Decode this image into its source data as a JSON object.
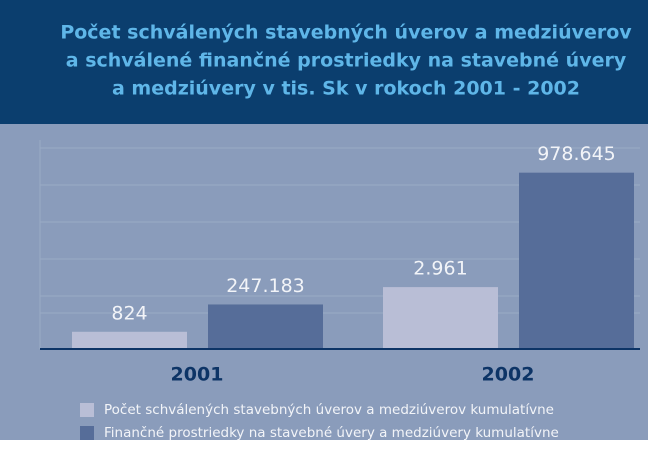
{
  "chart_data": {
    "type": "bar",
    "title": [
      "Počet schválených stavebných úverov a medziúverov",
      "a schválené finančné prostriedky na stavebné úvery",
      "a medziúvery v tis. Sk v rokoch 2001 - 2002"
    ],
    "categories": [
      "2001",
      "2002"
    ],
    "series": [
      {
        "name": "Počet schválených stavebných úverov a medziúverov kumulatívne",
        "color": "#b9bed6",
        "values": [
          824,
          2961
        ],
        "value_labels": [
          "824",
          "2.961"
        ],
        "axis": "y2"
      },
      {
        "name": "Finančné prostriedky na stavebné úvery a medziúvery kumulatívne",
        "color": "#566d99",
        "values": [
          247183,
          978645
        ],
        "value_labels": [
          "247.183",
          "978.645"
        ]
      }
    ],
    "ylim": [
      0,
      1160000
    ],
    "y2lim": [
      0,
      10000
    ]
  }
}
